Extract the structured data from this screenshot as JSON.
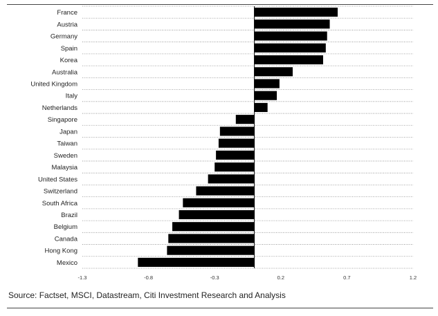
{
  "chart_data": {
    "type": "bar",
    "orientation": "horizontal",
    "title": "",
    "xlabel": "",
    "ylabel": "",
    "categories": [
      "France",
      "Austria",
      "Germany",
      "Spain",
      "Korea",
      "Australia",
      "United Kingdom",
      "Italy",
      "Netherlands",
      "Singapore",
      "Japan",
      "Taiwan",
      "Sweden",
      "Malaysia",
      "United States",
      "Switzerland",
      "South Africa",
      "Brazil",
      "Belgium",
      "Canada",
      "Hong Kong",
      "Mexico"
    ],
    "values": [
      0.63,
      0.57,
      0.55,
      0.54,
      0.52,
      0.29,
      0.19,
      0.17,
      0.1,
      -0.14,
      -0.26,
      -0.27,
      -0.29,
      -0.3,
      -0.35,
      -0.44,
      -0.54,
      -0.57,
      -0.62,
      -0.65,
      -0.66,
      -0.88
    ],
    "xlim": [
      -1.3,
      1.2
    ],
    "xticks": [
      "-1.3",
      "-0.8",
      "-0.3",
      "0.2",
      "0.7",
      "1.2"
    ],
    "grid": "horizontal dotted",
    "bar_color": "#000000"
  },
  "footer": {
    "source": "Source: Factset, MSCI, Datastream, Citi Investment Research and Analysis"
  }
}
